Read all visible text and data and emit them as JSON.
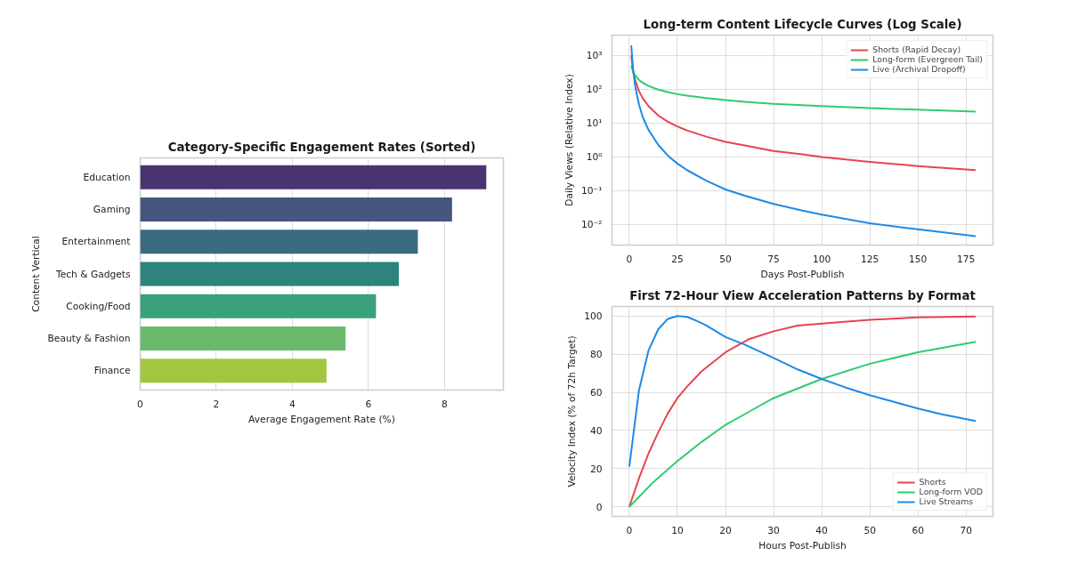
{
  "chart_data": [
    {
      "type": "bar",
      "orientation": "horizontal",
      "title": "Category-Specific Engagement Rates (Sorted)",
      "xlabel": "Average Engagement Rate (%)",
      "ylabel": "Content Vertical",
      "categories": [
        "Education",
        "Gaming",
        "Entertainment",
        "Tech & Gadgets",
        "Cooking/Food",
        "Beauty & Fashion",
        "Finance"
      ],
      "values": [
        9.1,
        8.2,
        7.3,
        6.8,
        6.2,
        5.4,
        4.9
      ],
      "colors": [
        "#4a3470",
        "#45567f",
        "#3a6b80",
        "#2e837d",
        "#3aa17b",
        "#6aba6c",
        "#a3c641"
      ],
      "xlim": [
        0,
        9.55
      ],
      "xticks": [
        0,
        2,
        4,
        6,
        8
      ],
      "grid": "x"
    },
    {
      "type": "line",
      "title": "Long-term Content Lifecycle Curves (Log Scale)",
      "xlabel": "Days Post-Publish",
      "ylabel": "Daily Views (Relative Index)",
      "log": "y",
      "x": [
        1,
        2,
        3,
        5,
        7,
        10,
        15,
        20,
        25,
        30,
        40,
        50,
        60,
        75,
        90,
        100,
        125,
        150,
        180
      ],
      "series": [
        {
          "name": "Shorts (Rapid Decay)",
          "color": "#e8434f",
          "values": [
            1000,
            354,
            192,
            89,
            54,
            32,
            17,
            11,
            8,
            6.1,
            4.0,
            2.8,
            2.2,
            1.5,
            1.2,
            1.0,
            0.72,
            0.54,
            0.41
          ]
        },
        {
          "name": "Long-form (Evergreen Tail)",
          "color": "#2ecc71",
          "values": [
            500,
            330,
            259,
            190,
            156,
            126,
            98,
            83,
            72,
            65,
            55,
            48,
            43,
            37,
            34,
            32,
            28,
            25,
            22
          ]
        },
        {
          "name": "Live (Archival Dropoff)",
          "color": "#1e8ae6",
          "values": [
            2000,
            354,
            128,
            36,
            15,
            6.3,
            2.3,
            1.1,
            0.64,
            0.41,
            0.2,
            0.11,
            0.072,
            0.041,
            0.026,
            0.02,
            0.011,
            0.0073,
            0.0046
          ]
        }
      ],
      "xlim": [
        -9,
        189
      ],
      "xticks": [
        0,
        25,
        50,
        75,
        100,
        125,
        150,
        175
      ],
      "ylim": [
        0.0025,
        4000
      ],
      "yticks": [
        {
          "value": 0.01,
          "label": "10⁻²"
        },
        {
          "value": 0.1,
          "label": "10⁻¹"
        },
        {
          "value": 1,
          "label": "10⁰"
        },
        {
          "value": 10,
          "label": "10¹"
        },
        {
          "value": 100,
          "label": "10²"
        },
        {
          "value": 1000,
          "label": "10³"
        }
      ],
      "grid": true,
      "legend": "top right"
    },
    {
      "type": "line",
      "title": "First 72-Hour View Acceleration Patterns by Format",
      "xlabel": "Hours Post-Publish",
      "ylabel": "Velocity Index (% of 72h Target)",
      "series": [
        {
          "name": "Shorts",
          "color": "#e8434f",
          "x": [
            0,
            2,
            4,
            6,
            8,
            10,
            12,
            15,
            20,
            25,
            30,
            35,
            40,
            50,
            60,
            72
          ],
          "values": [
            0,
            15,
            28,
            39,
            49,
            57,
            63,
            71,
            81,
            88,
            92,
            95,
            96,
            98,
            99.3,
            99.8
          ]
        },
        {
          "name": "Long-form VOD",
          "color": "#2ecc71",
          "x": [
            0,
            5,
            10,
            15,
            20,
            25,
            30,
            35,
            40,
            50,
            60,
            72
          ],
          "values": [
            0,
            13,
            24,
            34,
            43,
            50,
            57,
            62,
            67,
            75,
            81,
            86.5
          ]
        },
        {
          "name": "Live Streams",
          "color": "#1e8ae6",
          "x": [
            0,
            2,
            4,
            6,
            8,
            10,
            12,
            14,
            16,
            18,
            20,
            24,
            30,
            35,
            40,
            45,
            50,
            55,
            60,
            65,
            72
          ],
          "values": [
            21,
            61,
            82,
            93,
            98.5,
            100,
            99.5,
            97.5,
            95,
            92,
            89,
            85,
            78,
            72,
            67,
            62.5,
            58.5,
            55,
            51.5,
            48.5,
            45
          ]
        }
      ],
      "xlim": [
        -3.6,
        75.6
      ],
      "xticks": [
        0,
        10,
        20,
        30,
        40,
        50,
        60,
        70
      ],
      "ylim": [
        -5,
        105
      ],
      "yticks": [
        0,
        20,
        40,
        60,
        80,
        100
      ],
      "grid": true,
      "legend": "bottom right"
    }
  ]
}
